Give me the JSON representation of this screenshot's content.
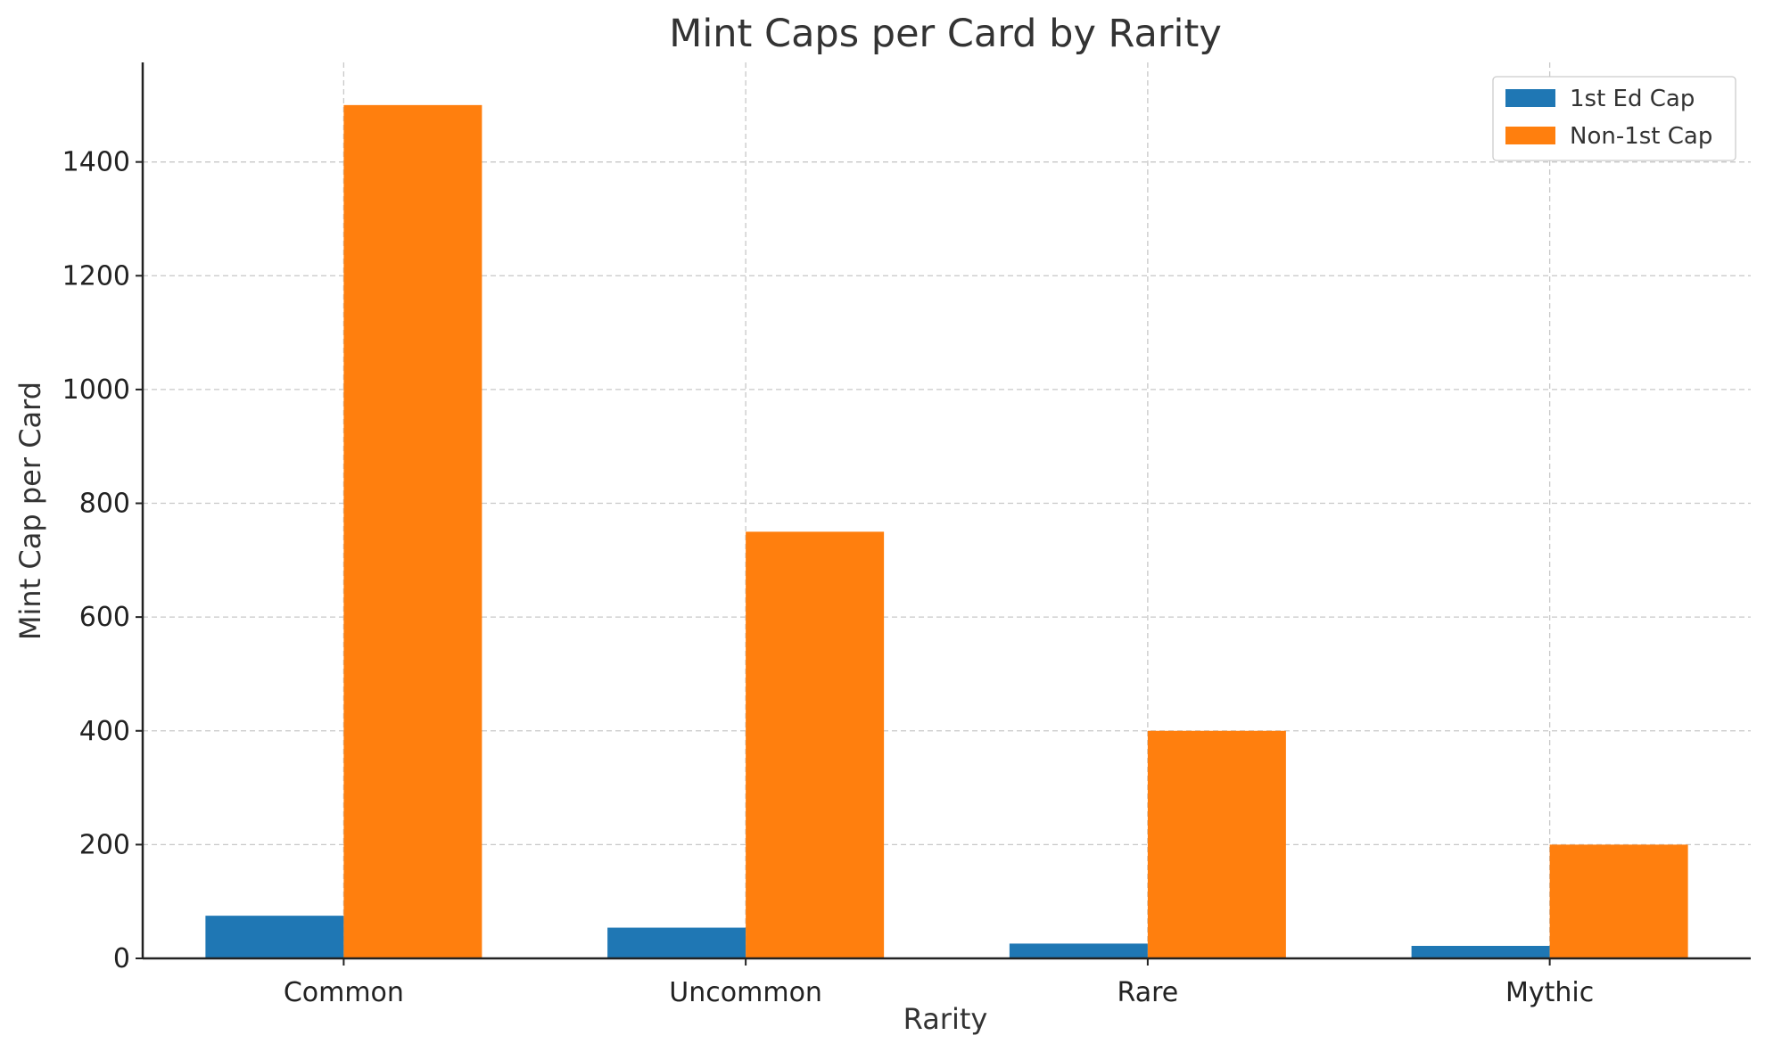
{
  "chart_data": {
    "type": "bar",
    "title": "Mint Caps per Card by Rarity",
    "xlabel": "Rarity",
    "ylabel": "Mint Cap per Card",
    "categories": [
      "Common",
      "Uncommon",
      "Rare",
      "Mythic"
    ],
    "series": [
      {
        "name": "1st Ed Cap",
        "color": "#1f77b4",
        "values": [
          75,
          54,
          26,
          22
        ]
      },
      {
        "name": "Non-1st Cap",
        "color": "#ff7f0e",
        "values": [
          1500,
          750,
          400,
          200
        ]
      }
    ],
    "yticks": [
      0,
      200,
      400,
      600,
      800,
      1000,
      1200,
      1400
    ],
    "ylim": [
      0,
      1575
    ],
    "grid": true,
    "legend_position": "top-right"
  }
}
